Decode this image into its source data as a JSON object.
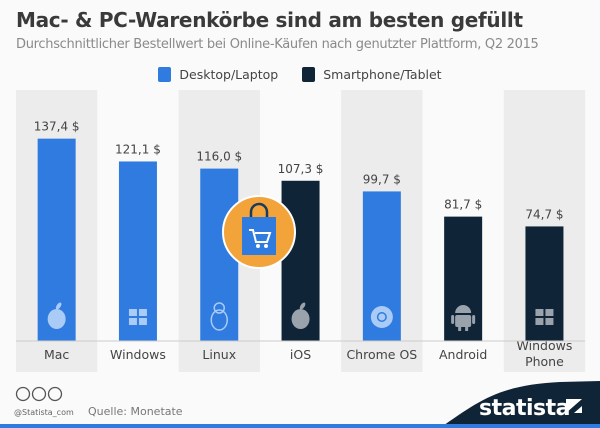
{
  "chart_data": {
    "type": "bar",
    "title": "Mac- & PC-Warenkörbe sind am besten gefüllt",
    "subtitle": "Durchschnittlicher Bestellwert bei Online-Käufen nach genutzter Plattform, Q2 2015",
    "categories": [
      "Mac",
      "Windows",
      "Linux",
      "iOS",
      "Chrome OS",
      "Android",
      "Windows Phone"
    ],
    "values": [
      137.4,
      121.1,
      116.0,
      107.3,
      99.7,
      81.7,
      74.7
    ],
    "data_labels": [
      "137,4 $",
      "121,1 $",
      "116,0 $",
      "107,3 $",
      "99,7 $",
      "81,7 $",
      "74,7 $"
    ],
    "series_of_category": [
      "Desktop/Laptop",
      "Desktop/Laptop",
      "Desktop/Laptop",
      "Smartphone/Tablet",
      "Desktop/Laptop",
      "Smartphone/Tablet",
      "Smartphone/Tablet"
    ],
    "icons": [
      "apple-icon",
      "windows-icon",
      "linux-icon",
      "apple-icon",
      "chrome-icon",
      "android-icon",
      "windows-icon"
    ],
    "legend": [
      {
        "name": "Desktop/Laptop",
        "color": "#2f7be0"
      },
      {
        "name": "Smartphone/Tablet",
        "color": "#0f2437"
      }
    ],
    "legend_position": "top",
    "grid": false,
    "unit": "$"
  },
  "footer": {
    "handle": "@Statista_com",
    "source": "Quelle: Monetate",
    "brand": "statista",
    "license_icons": [
      "cc-icon",
      "by-icon",
      "nd-icon"
    ]
  }
}
